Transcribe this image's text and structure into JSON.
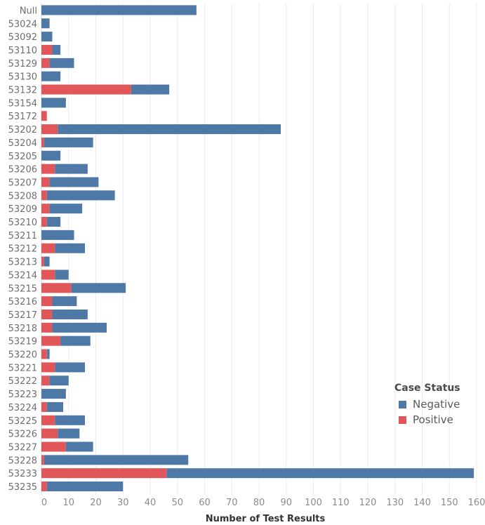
{
  "chart_data": {
    "type": "bar",
    "orientation": "horizontal",
    "stacked": true,
    "xlabel": "Number of Test Results",
    "xlim": [
      0,
      160
    ],
    "xticks": [
      0,
      10,
      20,
      30,
      40,
      50,
      60,
      70,
      80,
      90,
      100,
      110,
      120,
      130,
      140,
      150,
      160
    ],
    "grid": true,
    "categories": [
      "Null",
      "53024",
      "53092",
      "53110",
      "53129",
      "53130",
      "53132",
      "53154",
      "53172",
      "53202",
      "53204",
      "53205",
      "53206",
      "53207",
      "53208",
      "53209",
      "53210",
      "53211",
      "53212",
      "53213",
      "53214",
      "53215",
      "53216",
      "53217",
      "53218",
      "53219",
      "53220",
      "53221",
      "53222",
      "53223",
      "53224",
      "53225",
      "53226",
      "53227",
      "53228",
      "53233",
      "53235"
    ],
    "series": [
      {
        "name": "Positive",
        "color": "#e15759",
        "values": [
          0,
          0,
          0,
          4,
          3,
          0,
          33,
          0,
          2,
          6,
          1,
          0,
          5,
          3,
          2,
          3,
          2,
          0,
          5,
          1,
          5,
          11,
          4,
          4,
          4,
          7,
          2,
          5,
          3,
          0,
          2,
          5,
          6,
          9,
          1,
          46,
          2
        ]
      },
      {
        "name": "Negative",
        "color": "#4e79a7",
        "values": [
          57,
          3,
          4,
          3,
          9,
          7,
          14,
          9,
          0,
          82,
          18,
          7,
          12,
          18,
          25,
          12,
          5,
          12,
          11,
          2,
          5,
          20,
          9,
          13,
          20,
          11,
          1,
          11,
          7,
          9,
          6,
          11,
          8,
          10,
          53,
          113,
          28
        ]
      }
    ],
    "legend": {
      "title": "Case Status",
      "position": "right",
      "entries": [
        {
          "name": "Negative",
          "color": "#4e79a7"
        },
        {
          "name": "Positive",
          "color": "#e15759"
        }
      ]
    }
  }
}
